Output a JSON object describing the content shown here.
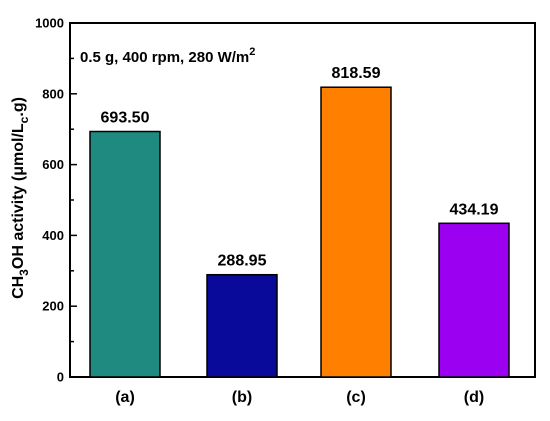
{
  "chart_data": {
    "type": "bar",
    "title": "",
    "xlabel": "",
    "ylabel_parts": {
      "main": "CH",
      "sub1": "3",
      "mid": "OH activity (μmol/L",
      "sub2": "c",
      "end": ".g)"
    },
    "annotation": {
      "text": "0.5 g, 400 rpm, 280 W/m",
      "sup": "2"
    },
    "categories": [
      "(a)",
      "(b)",
      "(c)",
      "(d)"
    ],
    "values": [
      693.5,
      288.95,
      818.59,
      434.19
    ],
    "value_labels": [
      "693.50",
      "288.95",
      "818.59",
      "434.19"
    ],
    "colors": [
      "#1f8a80",
      "#0a0a9a",
      "#ff8000",
      "#9b00f0"
    ],
    "ylim": [
      0,
      1000
    ],
    "yticks": [
      0,
      200,
      400,
      600,
      800,
      1000
    ],
    "ytick_labels": [
      "0",
      "200",
      "400",
      "600",
      "800",
      "1000"
    ],
    "grid": false,
    "legend": "none"
  }
}
